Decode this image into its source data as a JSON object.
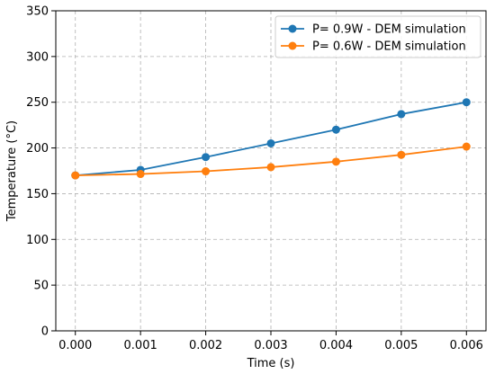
{
  "chart_data": {
    "type": "line",
    "title": "",
    "xlabel": "Time (s)",
    "ylabel": "Temperature (°C)",
    "x": [
      0.0,
      0.001,
      0.002,
      0.003,
      0.004,
      0.005,
      0.006
    ],
    "x_tick_labels": [
      "0.000",
      "0.001",
      "0.002",
      "0.003",
      "0.004",
      "0.005",
      "0.006"
    ],
    "xlim": [
      -0.0003,
      0.0063
    ],
    "ylim": [
      0,
      350
    ],
    "y_ticks": [
      0,
      50,
      100,
      150,
      200,
      250,
      300,
      350
    ],
    "y_tick_labels": [
      "0",
      "50",
      "100",
      "150",
      "200",
      "250",
      "300",
      "350"
    ],
    "grid": true,
    "legend_position": "top-right",
    "series": [
      {
        "name": "P= 0.9W - DEM simulation",
        "color": "#1f77b4",
        "values": [
          170,
          176,
          190,
          205,
          220,
          237,
          250
        ]
      },
      {
        "name": "P= 0.6W - DEM simulation",
        "color": "#ff7f0e",
        "values": [
          170,
          171.5,
          174.5,
          179,
          185,
          192.5,
          201.5
        ]
      }
    ]
  }
}
